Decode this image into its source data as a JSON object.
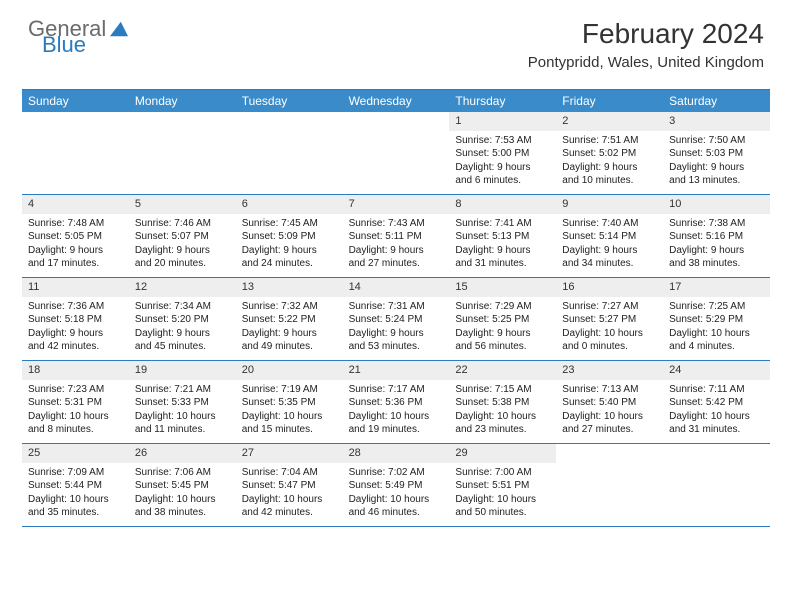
{
  "logo": {
    "text1": "General",
    "text2": "Blue"
  },
  "title": "February 2024",
  "location": "Pontypridd, Wales, United Kingdom",
  "colors": {
    "header_bg": "#3a8bc9",
    "border": "#2b7bbf",
    "daynum_bg": "#eeeeee",
    "text": "#222222"
  },
  "day_names": [
    "Sunday",
    "Monday",
    "Tuesday",
    "Wednesday",
    "Thursday",
    "Friday",
    "Saturday"
  ],
  "weeks": [
    [
      null,
      null,
      null,
      null,
      {
        "n": "1",
        "sr": "Sunrise: 7:53 AM",
        "ss": "Sunset: 5:00 PM",
        "dl1": "Daylight: 9 hours",
        "dl2": "and 6 minutes."
      },
      {
        "n": "2",
        "sr": "Sunrise: 7:51 AM",
        "ss": "Sunset: 5:02 PM",
        "dl1": "Daylight: 9 hours",
        "dl2": "and 10 minutes."
      },
      {
        "n": "3",
        "sr": "Sunrise: 7:50 AM",
        "ss": "Sunset: 5:03 PM",
        "dl1": "Daylight: 9 hours",
        "dl2": "and 13 minutes."
      }
    ],
    [
      {
        "n": "4",
        "sr": "Sunrise: 7:48 AM",
        "ss": "Sunset: 5:05 PM",
        "dl1": "Daylight: 9 hours",
        "dl2": "and 17 minutes."
      },
      {
        "n": "5",
        "sr": "Sunrise: 7:46 AM",
        "ss": "Sunset: 5:07 PM",
        "dl1": "Daylight: 9 hours",
        "dl2": "and 20 minutes."
      },
      {
        "n": "6",
        "sr": "Sunrise: 7:45 AM",
        "ss": "Sunset: 5:09 PM",
        "dl1": "Daylight: 9 hours",
        "dl2": "and 24 minutes."
      },
      {
        "n": "7",
        "sr": "Sunrise: 7:43 AM",
        "ss": "Sunset: 5:11 PM",
        "dl1": "Daylight: 9 hours",
        "dl2": "and 27 minutes."
      },
      {
        "n": "8",
        "sr": "Sunrise: 7:41 AM",
        "ss": "Sunset: 5:13 PM",
        "dl1": "Daylight: 9 hours",
        "dl2": "and 31 minutes."
      },
      {
        "n": "9",
        "sr": "Sunrise: 7:40 AM",
        "ss": "Sunset: 5:14 PM",
        "dl1": "Daylight: 9 hours",
        "dl2": "and 34 minutes."
      },
      {
        "n": "10",
        "sr": "Sunrise: 7:38 AM",
        "ss": "Sunset: 5:16 PM",
        "dl1": "Daylight: 9 hours",
        "dl2": "and 38 minutes."
      }
    ],
    [
      {
        "n": "11",
        "sr": "Sunrise: 7:36 AM",
        "ss": "Sunset: 5:18 PM",
        "dl1": "Daylight: 9 hours",
        "dl2": "and 42 minutes."
      },
      {
        "n": "12",
        "sr": "Sunrise: 7:34 AM",
        "ss": "Sunset: 5:20 PM",
        "dl1": "Daylight: 9 hours",
        "dl2": "and 45 minutes."
      },
      {
        "n": "13",
        "sr": "Sunrise: 7:32 AM",
        "ss": "Sunset: 5:22 PM",
        "dl1": "Daylight: 9 hours",
        "dl2": "and 49 minutes."
      },
      {
        "n": "14",
        "sr": "Sunrise: 7:31 AM",
        "ss": "Sunset: 5:24 PM",
        "dl1": "Daylight: 9 hours",
        "dl2": "and 53 minutes."
      },
      {
        "n": "15",
        "sr": "Sunrise: 7:29 AM",
        "ss": "Sunset: 5:25 PM",
        "dl1": "Daylight: 9 hours",
        "dl2": "and 56 minutes."
      },
      {
        "n": "16",
        "sr": "Sunrise: 7:27 AM",
        "ss": "Sunset: 5:27 PM",
        "dl1": "Daylight: 10 hours",
        "dl2": "and 0 minutes."
      },
      {
        "n": "17",
        "sr": "Sunrise: 7:25 AM",
        "ss": "Sunset: 5:29 PM",
        "dl1": "Daylight: 10 hours",
        "dl2": "and 4 minutes."
      }
    ],
    [
      {
        "n": "18",
        "sr": "Sunrise: 7:23 AM",
        "ss": "Sunset: 5:31 PM",
        "dl1": "Daylight: 10 hours",
        "dl2": "and 8 minutes."
      },
      {
        "n": "19",
        "sr": "Sunrise: 7:21 AM",
        "ss": "Sunset: 5:33 PM",
        "dl1": "Daylight: 10 hours",
        "dl2": "and 11 minutes."
      },
      {
        "n": "20",
        "sr": "Sunrise: 7:19 AM",
        "ss": "Sunset: 5:35 PM",
        "dl1": "Daylight: 10 hours",
        "dl2": "and 15 minutes."
      },
      {
        "n": "21",
        "sr": "Sunrise: 7:17 AM",
        "ss": "Sunset: 5:36 PM",
        "dl1": "Daylight: 10 hours",
        "dl2": "and 19 minutes."
      },
      {
        "n": "22",
        "sr": "Sunrise: 7:15 AM",
        "ss": "Sunset: 5:38 PM",
        "dl1": "Daylight: 10 hours",
        "dl2": "and 23 minutes."
      },
      {
        "n": "23",
        "sr": "Sunrise: 7:13 AM",
        "ss": "Sunset: 5:40 PM",
        "dl1": "Daylight: 10 hours",
        "dl2": "and 27 minutes."
      },
      {
        "n": "24",
        "sr": "Sunrise: 7:11 AM",
        "ss": "Sunset: 5:42 PM",
        "dl1": "Daylight: 10 hours",
        "dl2": "and 31 minutes."
      }
    ],
    [
      {
        "n": "25",
        "sr": "Sunrise: 7:09 AM",
        "ss": "Sunset: 5:44 PM",
        "dl1": "Daylight: 10 hours",
        "dl2": "and 35 minutes."
      },
      {
        "n": "26",
        "sr": "Sunrise: 7:06 AM",
        "ss": "Sunset: 5:45 PM",
        "dl1": "Daylight: 10 hours",
        "dl2": "and 38 minutes."
      },
      {
        "n": "27",
        "sr": "Sunrise: 7:04 AM",
        "ss": "Sunset: 5:47 PM",
        "dl1": "Daylight: 10 hours",
        "dl2": "and 42 minutes."
      },
      {
        "n": "28",
        "sr": "Sunrise: 7:02 AM",
        "ss": "Sunset: 5:49 PM",
        "dl1": "Daylight: 10 hours",
        "dl2": "and 46 minutes."
      },
      {
        "n": "29",
        "sr": "Sunrise: 7:00 AM",
        "ss": "Sunset: 5:51 PM",
        "dl1": "Daylight: 10 hours",
        "dl2": "and 50 minutes."
      },
      null,
      null
    ]
  ]
}
